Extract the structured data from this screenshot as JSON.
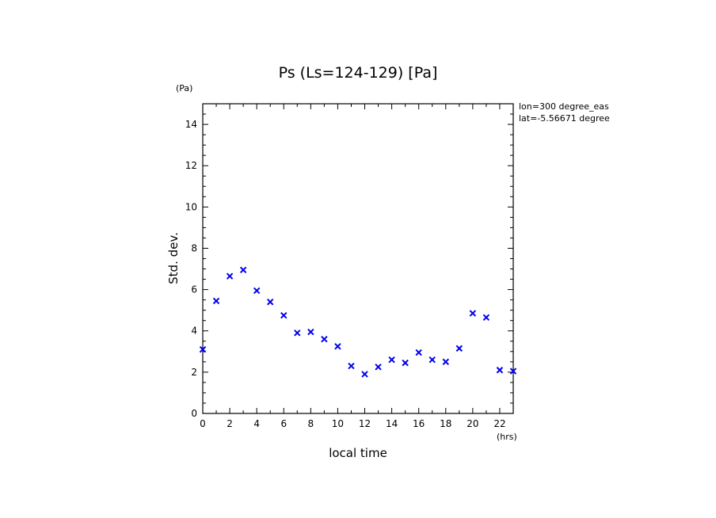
{
  "chart_data": {
    "type": "scatter",
    "title": "Ps (Ls=124-129) [Pa]",
    "xlabel": "local time",
    "ylabel": "Std. dev.",
    "x_unit": "(hrs)",
    "y_unit": "(Pa)",
    "xlim": [
      0,
      23
    ],
    "ylim": [
      0,
      15
    ],
    "x_major_ticks": [
      0,
      2,
      4,
      6,
      8,
      10,
      12,
      14,
      16,
      18,
      20,
      22
    ],
    "y_major_ticks": [
      0,
      2,
      4,
      6,
      8,
      10,
      12,
      14
    ],
    "grid": false,
    "marker": "x",
    "marker_color": "#0000ee",
    "annotations": [
      "lon=300 degree_eas",
      "lat=-5.56671 degree"
    ],
    "series": [
      {
        "x": [
          0,
          1,
          2,
          3,
          4,
          5,
          6,
          7,
          8,
          9,
          10,
          11,
          12,
          13,
          14,
          15,
          16,
          17,
          18,
          19,
          20,
          21,
          22,
          23
        ],
        "y": [
          3.1,
          5.45,
          6.65,
          6.95,
          5.95,
          5.4,
          4.75,
          3.9,
          3.95,
          3.6,
          3.25,
          2.3,
          1.9,
          2.25,
          2.6,
          2.45,
          2.95,
          2.6,
          2.5,
          3.15,
          4.85,
          4.65,
          2.1,
          2.05
        ]
      }
    ]
  }
}
